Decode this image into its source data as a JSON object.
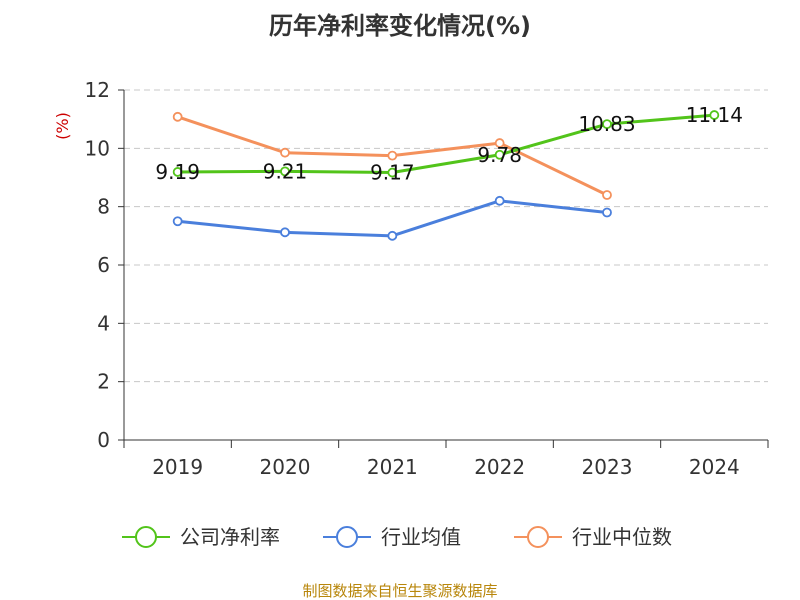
{
  "chart_data": {
    "type": "line",
    "title": "历年净利率变化情况(%)",
    "unit_label": "(%)",
    "categories": [
      "2019",
      "2020",
      "2021",
      "2022",
      "2023",
      "2024"
    ],
    "ylim": [
      0,
      12
    ],
    "yticks": [
      0,
      2,
      4,
      6,
      8,
      10,
      12
    ],
    "grid": true,
    "legend_position": "bottom",
    "series": [
      {
        "name": "公司净利率",
        "color": "#52c41a",
        "values": [
          9.19,
          9.21,
          9.17,
          9.78,
          10.83,
          11.14
        ],
        "labels": [
          "9.19",
          "9.21",
          "9.17",
          "9.78",
          "10.83",
          "11.14"
        ]
      },
      {
        "name": "行业均值",
        "color": "#4a7fdc",
        "values": [
          7.5,
          7.12,
          7.0,
          8.2,
          7.8,
          null
        ]
      },
      {
        "name": "行业中位数",
        "color": "#f4915c",
        "values": [
          11.08,
          9.85,
          9.75,
          10.18,
          8.4,
          null
        ]
      }
    ],
    "source": "制图数据来自恒生聚源数据库"
  }
}
